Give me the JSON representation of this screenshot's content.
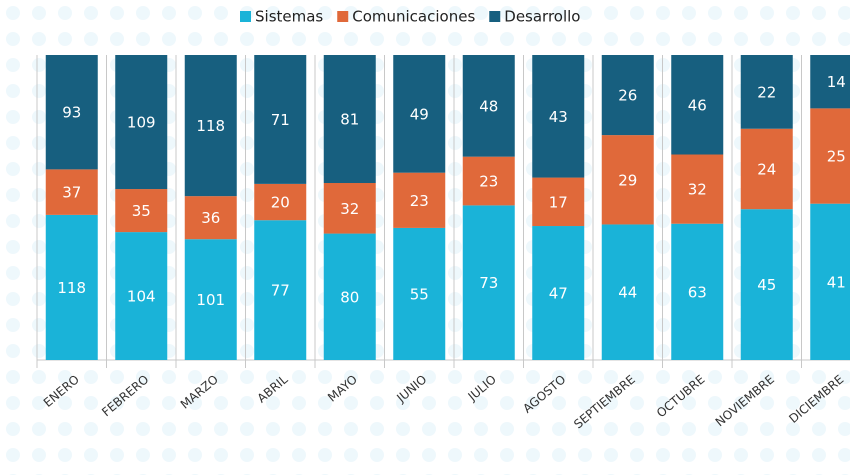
{
  "chart_data": {
    "type": "bar",
    "stacked": "percent",
    "categories": [
      "ENERO",
      "FEBRERO",
      "MARZO",
      "ABRIL",
      "MAYO",
      "JUNIO",
      "JULIO",
      "AGOSTO",
      "SEPTIEMBRE",
      "OCTUBRE",
      "NOVIEMBRE",
      "DICIEMBRE"
    ],
    "series": [
      {
        "name": "Sistemas",
        "color": "#1ab3d8",
        "values": [
          118,
          104,
          101,
          77,
          80,
          55,
          73,
          47,
          44,
          63,
          45,
          41
        ]
      },
      {
        "name": "Comunicaciones",
        "color": "#e0693a",
        "values": [
          37,
          35,
          36,
          20,
          32,
          23,
          23,
          17,
          29,
          32,
          24,
          25
        ]
      },
      {
        "name": "Desarrollo",
        "color": "#175f7f",
        "values": [
          93,
          109,
          118,
          71,
          81,
          49,
          48,
          43,
          26,
          46,
          22,
          14
        ]
      }
    ],
    "legend": "top"
  }
}
